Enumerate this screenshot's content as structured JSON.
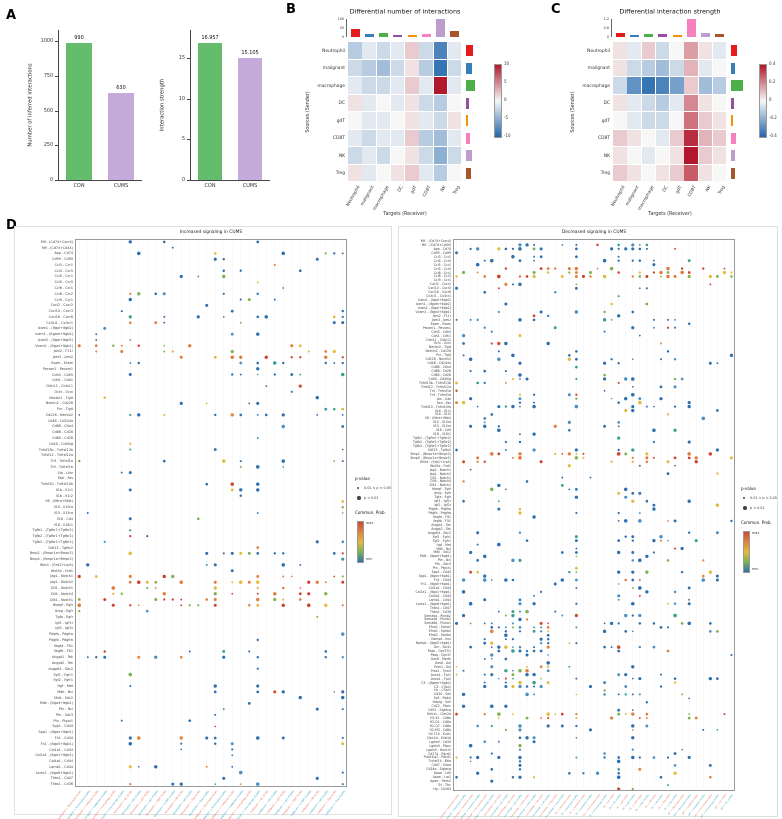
{
  "figure": {
    "panel_labels": {
      "a": "A",
      "b": "B",
      "c": "C",
      "d": "D"
    },
    "cell_types": [
      "Neutrophil",
      "malignant",
      "macrophage",
      "DC",
      "gdT",
      "CD8T",
      "NK",
      "Treg"
    ],
    "palette": [
      "#E41A1C",
      "#377EB8",
      "#4DAF4A",
      "#984EA3",
      "#F29403",
      "#F781BF",
      "#BC9DCC",
      "#A65628"
    ],
    "datasets": [
      "CON",
      "CUMS"
    ],
    "dataset_label_colors": {
      "CON": "#DD6E5F",
      "CUMS": "#2BA3BE"
    }
  },
  "chart_data": [
    {
      "id": "bar-interactions",
      "type": "bar",
      "title": "",
      "ylabel": "Number of inferred interactions",
      "categories": [
        "CON",
        "CUMS"
      ],
      "values": [
        990,
        630
      ],
      "bar_labels": [
        "990",
        "630"
      ],
      "bar_colors": [
        "#63BD6C",
        "#C5ABDB"
      ],
      "yticks": [
        0,
        250,
        500,
        750,
        1000
      ],
      "ylim": [
        0,
        1080
      ]
    },
    {
      "id": "bar-strength",
      "type": "bar",
      "title": "",
      "ylabel": "Interaction strength",
      "categories": [
        "CON",
        "CUMS"
      ],
      "values": [
        16.957,
        15.105
      ],
      "bar_labels": [
        "16.957",
        "15.105"
      ],
      "bar_colors": [
        "#63BD6C",
        "#C5ABDB"
      ],
      "yticks": [
        0,
        5,
        10,
        15
      ],
      "ylim": [
        0,
        18.5
      ]
    },
    {
      "id": "heat-number",
      "type": "heatmap",
      "title": "Differential number of interactions",
      "ylabel": "Sources (Sender)",
      "xlabel": "Targets (Receiver)",
      "rows": [
        "Neutrophil",
        "malignant",
        "macrophage",
        "DC",
        "gdT",
        "CD8T",
        "NK",
        "Treg"
      ],
      "cols": [
        "Neutrophil",
        "malignant",
        "macrophage",
        "DC",
        "gdT",
        "CD8T",
        "NK",
        "Treg"
      ],
      "vmax": 10,
      "values": [
        [
          -3,
          -1,
          -2,
          -1,
          2,
          -2,
          -8,
          -1
        ],
        [
          -2,
          -3,
          -4,
          -2,
          1,
          -3,
          -9,
          -2
        ],
        [
          -1,
          -2,
          -2,
          -1,
          2,
          -1,
          10,
          -1
        ],
        [
          1,
          -1,
          0,
          -1,
          1,
          -2,
          -3,
          0
        ],
        [
          0,
          -1,
          -1,
          0,
          1,
          -1,
          -2,
          1
        ],
        [
          -1,
          -2,
          -1,
          -1,
          2,
          -3,
          -4,
          -1
        ],
        [
          -2,
          -1,
          -2,
          0,
          1,
          -2,
          -5,
          -2
        ],
        [
          1,
          -1,
          0,
          1,
          2,
          -1,
          -3,
          0
        ]
      ],
      "col_bars": [
        45,
        18,
        25,
        12,
        10,
        15,
        100,
        35
      ],
      "row_bars": [
        35,
        30,
        45,
        15,
        12,
        18,
        30,
        25
      ],
      "top_ticks": [
        "100",
        "50",
        "0"
      ],
      "legend_ticks": [
        "10",
        "5",
        "0",
        "-5",
        "-10"
      ]
    },
    {
      "id": "heat-strength",
      "type": "heatmap",
      "title": "Differential interaction strength",
      "ylabel": "Sources (Sender)",
      "xlabel": "Targets (Receiver)",
      "rows": [
        "Neutrophil",
        "malignant",
        "macrophage",
        "DC",
        "gdT",
        "CD8T",
        "NK",
        "Treg"
      ],
      "cols": [
        "Neutrophil",
        "malignant",
        "macrophage",
        "DC",
        "gdT",
        "CD8T",
        "NK",
        "Treg"
      ],
      "vmax": 0.5,
      "values": [
        [
          0.05,
          -0.05,
          0.1,
          -0.1,
          0.0,
          0.2,
          0.05,
          -0.05
        ],
        [
          0.05,
          -0.1,
          -0.15,
          -0.2,
          -0.1,
          0.15,
          -0.05,
          0.0
        ],
        [
          -0.1,
          -0.35,
          -0.45,
          -0.4,
          -0.3,
          0.1,
          -0.2,
          -0.15
        ],
        [
          0.05,
          -0.05,
          -0.1,
          -0.15,
          -0.05,
          0.25,
          0.05,
          0.0
        ],
        [
          0.0,
          -0.05,
          -0.1,
          -0.1,
          0.0,
          0.3,
          0.1,
          0.05
        ],
        [
          0.1,
          0.05,
          0.0,
          -0.05,
          0.1,
          0.45,
          0.15,
          0.1
        ],
        [
          0.05,
          0.0,
          -0.05,
          0.0,
          0.05,
          0.5,
          0.1,
          0.05
        ],
        [
          0.1,
          0.05,
          0.0,
          0.05,
          0.1,
          0.35,
          0.05,
          0.0
        ]
      ],
      "col_bars": [
        25,
        12,
        18,
        15,
        10,
        100,
        20,
        14
      ],
      "row_bars": [
        30,
        20,
        60,
        15,
        12,
        25,
        20,
        18
      ],
      "top_ticks": [
        "1.2",
        "0.6",
        "0"
      ],
      "legend_ticks": [
        "0.4",
        "0.2",
        "0",
        "-0.2",
        "-0.4"
      ]
    },
    {
      "id": "bubble-increased",
      "type": "bubble",
      "title": "Increased signaling in CUMS",
      "row_start": 0,
      "row_end": 95,
      "col_pairs": [
        "Neutrophil -> Neutrophil",
        "Neutrophil -> malignant",
        "Neutrophil -> macrophage",
        "Neutrophil -> DC",
        "Neutrophil -> gdT",
        "Neutrophil -> CD8T",
        "Neutrophil -> NK",
        "Neutrophil -> Treg",
        "malignant -> Neutrophil",
        "malignant -> malignant",
        "malignant -> macrophage",
        "malignant -> DC",
        "malignant -> gdT",
        "malignant -> CD8T",
        "malignant -> NK",
        "malignant -> Treg"
      ],
      "legend": {
        "pvalue_title": "p-value",
        "pvalue_items": [
          "0.01 < p < 0.05",
          "p < 0.01"
        ],
        "prob_title": "Commun. Prob.",
        "prob_max": "max",
        "prob_min": "min"
      },
      "seed": 11,
      "density": 0.1,
      "hot_rows": [
        18,
        19,
        20,
        58,
        59,
        60,
        61,
        62,
        63
      ],
      "cluster": null
    },
    {
      "id": "bubble-decreased",
      "type": "bubble",
      "title": "Decreased signaling in CUMS",
      "row_start": 0,
      "row_end": 140,
      "col_pairs": [
        "macrophage -> Neutrophil",
        "macrophage -> malignant",
        "macrophage -> macrophage",
        "macrophage -> DC",
        "macrophage -> gdT",
        "macrophage -> CD8T",
        "macrophage -> NK",
        "macrophage -> Treg",
        "DC -> Neutrophil",
        "DC -> malignant",
        "DC -> macrophage",
        "DC -> DC",
        "DC -> gdT",
        "DC -> CD8T",
        "DC -> NK",
        "DC -> Treg",
        "gdT -> Neutrophil",
        "gdT -> malignant",
        "gdT -> macrophage",
        "gdT -> DC"
      ],
      "legend": {
        "pvalue_title": "p-value",
        "pvalue_items": [
          "0.01 < p < 0.05",
          "p < 0.01"
        ],
        "prob_title": "Commun. Prob.",
        "prob_max": "max",
        "prob_min": "min"
      },
      "seed": 29,
      "density": 0.1,
      "hot_rows": [
        7,
        8,
        9,
        54,
        55,
        56,
        120,
        121
      ],
      "cluster": {
        "r0": 95,
        "r1": 113,
        "c0": 4,
        "c1": 13,
        "p": 0.5
      }
    }
  ],
  "lr_pairs": [
    "Mif - (Cd74+Cxcr4)",
    "Mif - (Cd74+Cd44)",
    "App - Cd74",
    "Cd99 - Cd99",
    "Ccl3 - Ccr1",
    "Ccl4 - Ccr5",
    "Ccl5 - Ccr1",
    "Ccl5 - Ccr5",
    "Ccl6 - Ccr1",
    "Ccl6 - Ccr2",
    "Ccl9 - Ccr1",
    "Cxcl2 - Cxcr2",
    "Cxcl10 - Cxcr3",
    "Cxcl16 - Cxcr6",
    "Cx3cl1 - Cx3cr1",
    "Icam1 - (Itgal+Itgb2)",
    "Icam1 - (Itgam+Itgb2)",
    "Icam2 - (Itgal+Itgb2)",
    "Vcam1 - (Itga4+Itgb1)",
    "Jam2 - F11r",
    "Jam3 - Jam2",
    "Esam - Esam",
    "Pecam1 - Pecam1",
    "Cdh5 - Cdh5",
    "Cdh1 - Cdh1",
    "Cldn11 - Cldn11",
    "Ocln - Ocln",
    "Nectin2 - Tigit",
    "Nectin2 - Cd226",
    "Pvr - Tigit",
    "Cd226 - Nectin2",
    "Cd48 - Cd244a",
    "Cd86 - Ctla4",
    "Cd86 - Cd28",
    "Cd80 - Cd28",
    "Cd40 - Cd40lg",
    "Tnfsf13b - Tnfrsf13b",
    "Tnfsf12 - Tnfrsf12a",
    "Tnf - Tnfrsf1a",
    "Tnf - Tnfrsf1b",
    "Ltb - Ltbr",
    "Fasl - Fas",
    "Tnfsf10 - Tnfrsf10b",
    "Il1b - Il1r1",
    "Il1b - Il1r2",
    "Il6 - (Il6ra+Il6st)",
    "Il10 - Il10ra",
    "Il15 - Il15ra",
    "Il16 - Cd4",
    "Il18 - Il18r1",
    "Tgfb1 - (Tgfbr1+Tgfbr2)",
    "Tgfb2 - (Tgfbr1+Tgfbr2)",
    "Tgfb3 - (Tgfbr1+Tgfbr2)",
    "Gdf15 - Tgfbr2",
    "Bmp2 - (Bmpr1a+Bmpr2)",
    "Bmp4 - (Bmpr1a+Bmpr2)",
    "Wnt4 - (Fzd1+Lrp5)",
    "Wnt5a - Fzd1",
    "Jag1 - Notch1",
    "Jag1 - Notch2",
    "Dll1 - Notch1",
    "Dll4 - Notch4",
    "Dlk1 - Notch1",
    "Hbegf - Egfr",
    "Areg - Egfr",
    "Tgfa - Egfr",
    "Igf1 - Igf1r",
    "Igf2 - Igf2r",
    "Pdgfa - Pdgfra",
    "Pdgfb - Pdgfrb",
    "Vegfa - Flt1",
    "Vegfb - Flt1",
    "Angpt1 - Tek",
    "Angpt2 - Tek",
    "Angptl4 - Sdc2",
    "Fgf1 - Fgfr1",
    "Fgf2 - Fgfr1",
    "Hgf - Met",
    "Mdk - Ncl",
    "Mdk - Sdc2",
    "Mdk - (Itga4+Itgb1)",
    "Ptn - Ncl",
    "Ptn - Sdc3",
    "Ptn - Ptprz1",
    "Spp1 - Cd44",
    "Spp1 - (Itgav+Itgb1)",
    "Fn1 - Cd44",
    "Fn1 - (Itga5+Itgb1)",
    "Col1a1 - Cd44",
    "Col1a1 - (Itga1+Itgb1)",
    "Col4a1 - Cd44",
    "Lamb1 - Cd44",
    "Lamc1 - (Itga6+Itgb1)",
    "Thbs1 - Cd47",
    "Thbs1 - Cd36",
    "Sema4a - Plxnb2",
    "Sema4d - Plxnb1",
    "Sema6d - Plxna1",
    "Efna1 - Epha2",
    "Efnb1 - Ephb2",
    "Efnb2 - Ephb4",
    "Nampt - Insr",
    "Nampt - (Itga5+Itgb1)",
    "Grn - Sort1",
    "Psap - Gpr37l1",
    "Psap - Gpr37",
    "Gas6 - Mertk",
    "Gas6 - Axl",
    "Pros1 - Axl",
    "Pros1 - Tyro3",
    "Anxa1 - Fpr1",
    "Anxa1 - Fpr2",
    "C3 - (Itgam+Itgb2)",
    "C3 - C3ar1",
    "Hc - C5ar1",
    "Cd34 - Sell",
    "Sell - Podxl",
    "Selplg - Sell",
    "Cd22 - Ptprc",
    "Cd52 - Siglecg",
    "Klrb1c - Clec2d",
    "H2-K1 - Cd8a",
    "H2-D1 - Cd8a",
    "H2-Q7 - Cd8a",
    "H2-M3 - Cd8a",
    "H2-T23 - Klrd1",
    "Clec2d - Klrb1b",
    "Lgals9 - Cd44",
    "Lgals9 - Ptprc",
    "Lgals9 - Havcr2",
    "Cd274 - Pdcd1",
    "Pdcd1lg2 - Pdcd1",
    "Tnfrsf14 - Btla",
    "Cd47 - Sirpa",
    "Cd24a - Siglecg",
    "Apoe - Ldlr",
    "Apoe - Lrp1",
    "Apoe - Trem2",
    "Trf - Tfrc",
    "Hp - Cd163"
  ]
}
